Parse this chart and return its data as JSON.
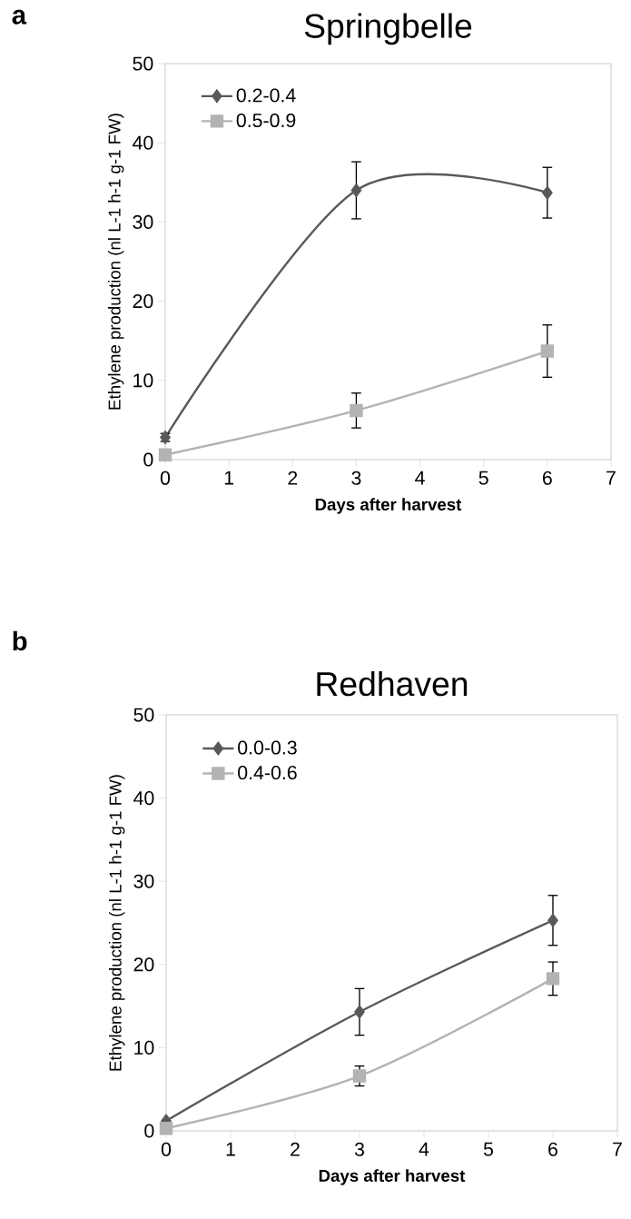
{
  "chart_data": [
    {
      "type": "line",
      "title": "Springbelle",
      "xlabel": "Days after harvest",
      "ylabel": "Ethylene production (nl L-1 h-1 g-1 FW)",
      "annotations": [
        "a"
      ],
      "x": [
        0,
        3,
        6
      ],
      "series": [
        {
          "name": "0.2-0.4",
          "color": "#595959",
          "marker": "diamond",
          "values": [
            2.8,
            34,
            33.7
          ],
          "errors": [
            0.5,
            3.6,
            3.2
          ]
        },
        {
          "name": "0.5-0.9",
          "color": "#b3b3b3",
          "marker": "square",
          "values": [
            0.6,
            6.2,
            13.7
          ],
          "errors": [
            null,
            2.2,
            3.3
          ]
        }
      ],
      "xlim": [
        0,
        7
      ],
      "xticks": [
        0,
        1,
        2,
        3,
        4,
        5,
        6,
        7
      ],
      "ylim": [
        0,
        50
      ],
      "yticks": [
        0,
        10,
        20,
        30,
        40,
        50
      ],
      "grid": false,
      "legend": "top left"
    },
    {
      "type": "line",
      "title": "Redhaven",
      "xlabel": "Days after harvest",
      "ylabel": "Ethylene production (nl L-1 h-1 g-1 FW)",
      "annotations": [
        "b"
      ],
      "x": [
        0,
        3,
        6
      ],
      "series": [
        {
          "name": "0.0-0.3",
          "color": "#595959",
          "marker": "diamond",
          "values": [
            1.2,
            14.3,
            25.3
          ],
          "errors": [
            null,
            2.8,
            3.0
          ]
        },
        {
          "name": "0.4-0.6",
          "color": "#b3b3b3",
          "marker": "square",
          "values": [
            0.3,
            6.6,
            18.3
          ],
          "errors": [
            null,
            1.2,
            2.0
          ]
        }
      ],
      "xlim": [
        0,
        7
      ],
      "xticks": [
        0,
        1,
        2,
        3,
        4,
        5,
        6,
        7
      ],
      "ylim": [
        0,
        50
      ],
      "yticks": [
        0,
        10,
        20,
        30,
        40,
        50
      ],
      "grid": false,
      "legend": "top left"
    }
  ]
}
